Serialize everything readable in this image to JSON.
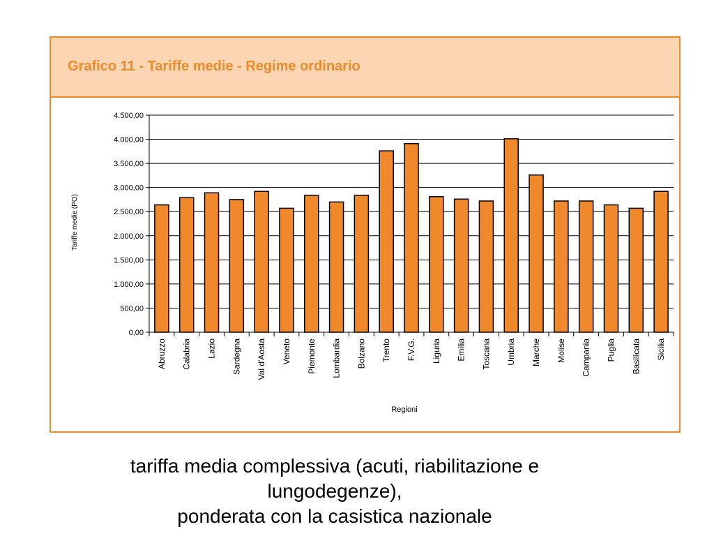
{
  "caption": {
    "line1": "tariffa media complessiva (acuti, riabilitazione e",
    "line2": "lungodegenze),",
    "line3": "ponderata con la casistica nazionale"
  },
  "colors": {
    "accent": "#ef8a2b",
    "header_bg": "#fcd6b2",
    "bar": "#f0892c"
  },
  "chart_data": {
    "type": "bar",
    "title": "Grafico 11 - Tariffe medie - Regime ordinario",
    "xlabel": "Regioni",
    "ylabel": "Tariffe medie (PO)",
    "ylim": [
      0,
      4500
    ],
    "yticks": [
      0,
      500,
      1000,
      1500,
      2000,
      2500,
      3000,
      3500,
      4000,
      4500
    ],
    "ytick_labels": [
      "0,00",
      "500,00",
      "1.000,00",
      "1.500,00",
      "2.000,00",
      "2.500,00",
      "3.000,00",
      "3.500,00",
      "4.000,00",
      "4.500,00"
    ],
    "grid": "horizontal",
    "categories": [
      "Abruzzo",
      "Calabria",
      "Lazio",
      "Sardegna",
      "Val d'Aosta",
      "Veneto",
      "Piemonte",
      "Lombardia",
      "Bolzano",
      "Trento",
      "F.V.G.",
      "Liguria",
      "Emilia",
      "Toscana",
      "Umbria",
      "Marche",
      "Molise",
      "Campania",
      "Puglia",
      "Basilicata",
      "Sicilia"
    ],
    "values": [
      2640,
      2790,
      2890,
      2750,
      2920,
      2570,
      2840,
      2700,
      2840,
      3760,
      3910,
      2810,
      2760,
      2720,
      4010,
      3260,
      2720,
      2720,
      2640,
      2570,
      2920
    ]
  }
}
